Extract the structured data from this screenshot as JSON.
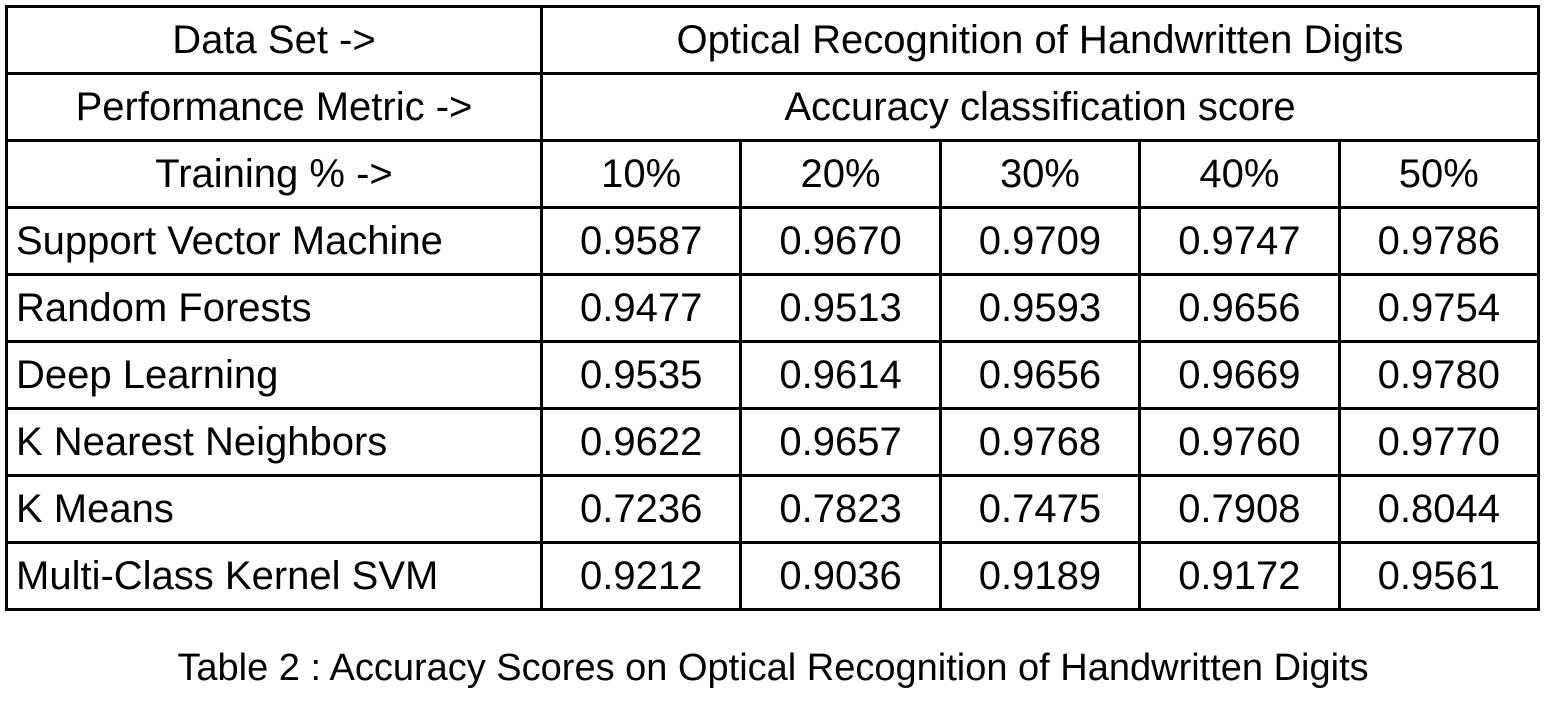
{
  "header": {
    "dataset_label": "Data Set ->",
    "dataset": "Optical Recognition of Handwritten Digits",
    "metric_label": "Performance Metric ->",
    "metric": "Accuracy classification score",
    "training_label": "Training % ->",
    "training": [
      "10%",
      "20%",
      "30%",
      "40%",
      "50%"
    ]
  },
  "table": {
    "rows": [
      [
        "Support Vector Machine",
        "0.9587",
        "0.9670",
        "0.9709",
        "0.9747",
        "0.9786"
      ],
      [
        "Random Forests",
        "0.9477",
        "0.9513",
        "0.9593",
        "0.9656",
        "0.9754"
      ],
      [
        "Deep Learning",
        "0.9535",
        "0.9614",
        "0.9656",
        "0.9669",
        "0.9780"
      ],
      [
        "K Nearest Neighbors",
        "0.9622",
        "0.9657",
        "0.9768",
        "0.9760",
        "0.9770"
      ],
      [
        "K Means",
        "0.7236",
        "0.7823",
        "0.7475",
        "0.7908",
        "0.8044"
      ],
      [
        "Multi-Class Kernel SVM",
        "0.9212",
        "0.9036",
        "0.9189",
        "0.9172",
        "0.9561"
      ]
    ]
  },
  "caption": "Table 2 : Accuracy Scores on Optical Recognition of Handwritten Digits"
}
